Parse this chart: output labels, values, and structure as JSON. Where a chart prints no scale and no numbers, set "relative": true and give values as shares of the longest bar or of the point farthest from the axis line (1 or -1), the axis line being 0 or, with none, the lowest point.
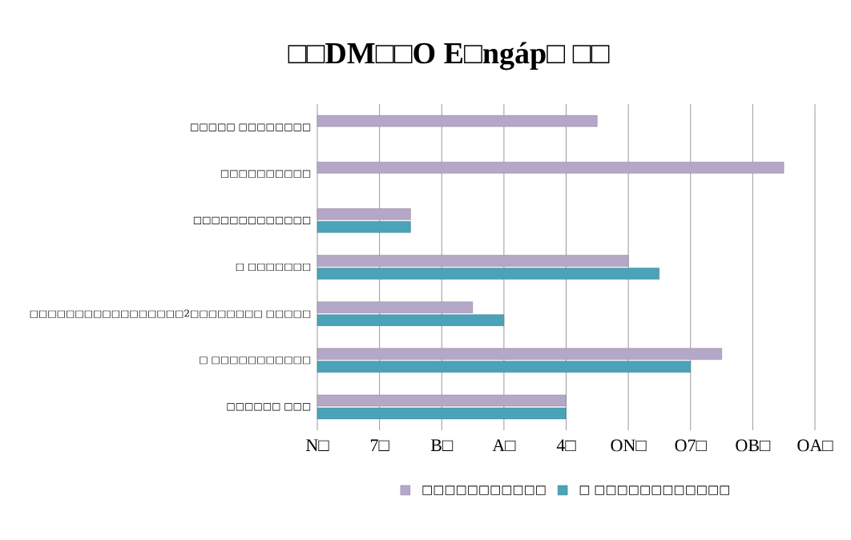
{
  "chart_data": {
    "type": "bar",
    "orientation": "horizontal",
    "relative": true,
    "title": "□□DM□□O E□ngáp□ □□",
    "categories": [
      "□□□□□  □□□□□□□□",
      "□□□□□□□□□□",
      "□□□□□□□□□□□□□",
      "□ □□□□□□□",
      "□□□□□□□□□□□□□□□□□2□□□□□□□□ □□□□□",
      "□ □□□□□□□□□□□",
      "□□□□□□ □□□"
    ],
    "series": [
      {
        "name": "□□□□□□□□□□□",
        "color": "#b4a7c8",
        "values": [
          0.6,
          1,
          0.2,
          0.667,
          0.333,
          0.867,
          0.533
        ]
      },
      {
        "name": "□ □□□□□□□□□□□□",
        "color": "#4aa3b8",
        "values": [
          null,
          null,
          0.2,
          0.733,
          0.4,
          0.8,
          0.533
        ]
      }
    ],
    "annotations": [
      "N□",
      "7□",
      "B□",
      "A□",
      "4□",
      "ON□",
      "O7□",
      "OB□",
      "OA□"
    ],
    "grid": "x",
    "legend": "bottom"
  }
}
